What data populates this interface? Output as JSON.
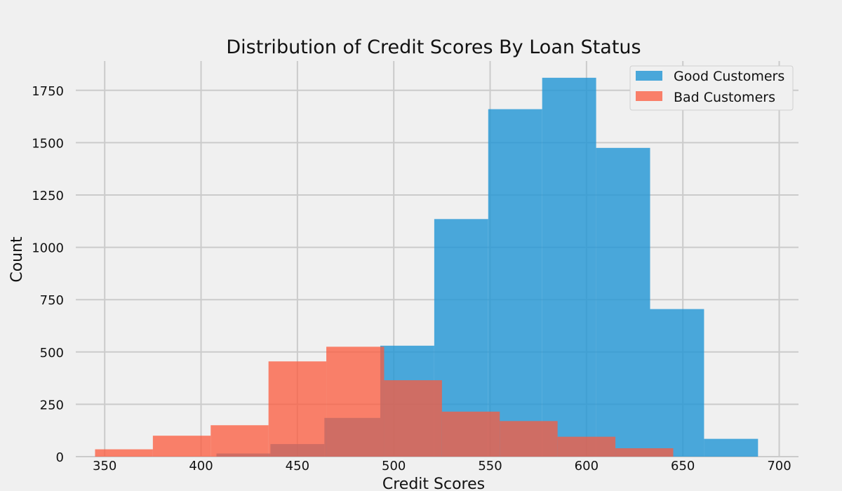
{
  "chart_data": {
    "type": "bar",
    "title": "Distribution of Credit Scores By Loan Status",
    "xlabel": "Credit Scores",
    "ylabel": "Count",
    "xlim": [
      335,
      710
    ],
    "ylim": [
      0,
      1890
    ],
    "xticks": [
      350,
      400,
      450,
      500,
      550,
      600,
      650,
      700
    ],
    "yticks": [
      0,
      250,
      500,
      750,
      1000,
      1250,
      1500,
      1750
    ],
    "grid": true,
    "legend_position": "top-right",
    "series": [
      {
        "name": "Good Customers",
        "color": "#1f95d5",
        "opacity": 0.8,
        "bins": [
          {
            "x0": 408,
            "x1": 436,
            "value": 15
          },
          {
            "x0": 436,
            "x1": 464,
            "value": 60
          },
          {
            "x0": 464,
            "x1": 493,
            "value": 185
          },
          {
            "x0": 493,
            "x1": 521,
            "value": 530
          },
          {
            "x0": 521,
            "x1": 549,
            "value": 1135
          },
          {
            "x0": 549,
            "x1": 577,
            "value": 1660
          },
          {
            "x0": 577,
            "x1": 605,
            "value": 1810
          },
          {
            "x0": 605,
            "x1": 633,
            "value": 1475
          },
          {
            "x0": 633,
            "x1": 661,
            "value": 705
          },
          {
            "x0": 661,
            "x1": 689,
            "value": 85
          }
        ]
      },
      {
        "name": "Bad Customers",
        "color": "#fc5a3c",
        "opacity": 0.75,
        "bins": [
          {
            "x0": 345,
            "x1": 375,
            "value": 35
          },
          {
            "x0": 375,
            "x1": 405,
            "value": 100
          },
          {
            "x0": 405,
            "x1": 435,
            "value": 150
          },
          {
            "x0": 435,
            "x1": 465,
            "value": 455
          },
          {
            "x0": 465,
            "x1": 495,
            "value": 525
          },
          {
            "x0": 495,
            "x1": 525,
            "value": 365
          },
          {
            "x0": 525,
            "x1": 555,
            "value": 215
          },
          {
            "x0": 555,
            "x1": 585,
            "value": 170
          },
          {
            "x0": 585,
            "x1": 615,
            "value": 95
          },
          {
            "x0": 615,
            "x1": 645,
            "value": 40
          }
        ]
      }
    ]
  }
}
